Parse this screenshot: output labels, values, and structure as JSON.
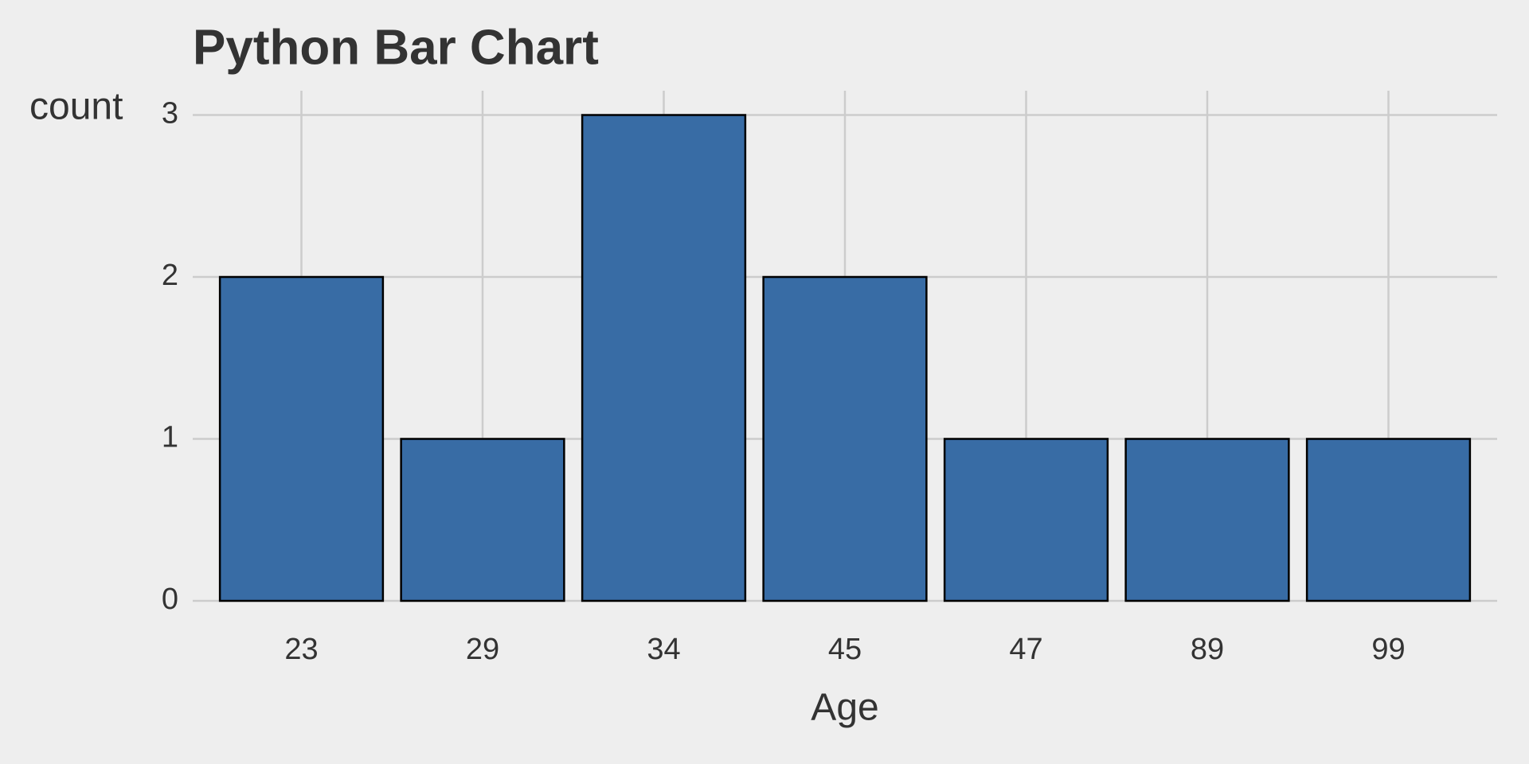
{
  "chart_data": {
    "type": "bar",
    "title": "Python Bar Chart",
    "x_label": "Age",
    "y_label": "count",
    "categories": [
      "23",
      "29",
      "34",
      "45",
      "47",
      "89",
      "99"
    ],
    "values": [
      2,
      1,
      3,
      2,
      1,
      1,
      1
    ],
    "color": "#386ca5",
    "ylim": [
      0,
      3.15
    ],
    "yticks": [
      0,
      1,
      2,
      3
    ],
    "grid": true
  }
}
